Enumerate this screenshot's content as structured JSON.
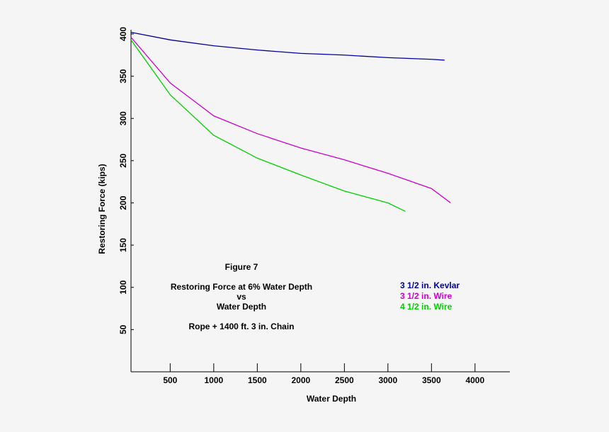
{
  "chart_data": {
    "type": "line",
    "x_label": "Water Depth",
    "y_label": "Restoring Force (kips)",
    "annotations": [
      "Figure  7",
      "Restoring Force at 6% Water Depth",
      "vs",
      "Water Depth",
      "Rope + 1400 ft.  3 in. Chain"
    ],
    "xlim": [
      50,
      4400
    ],
    "xticks": [
      500,
      1000,
      1500,
      2000,
      2500,
      3000,
      3500,
      4000
    ],
    "ylim": [
      0,
      405
    ],
    "yticks": [
      50,
      100,
      150,
      200,
      250,
      300,
      350,
      400
    ],
    "x": [
      50,
      500,
      1000,
      1500,
      2000,
      2500,
      3000,
      3200,
      3500,
      3650,
      3720
    ],
    "series": [
      {
        "name": "3 1/2 in. Kevlar",
        "color": "#0000a0",
        "values": [
          402,
          393,
          386,
          381,
          377,
          375,
          372,
          null,
          370,
          369,
          null
        ]
      },
      {
        "name": "3 1/2 in. Wire",
        "color": "#d000d0",
        "values": [
          396,
          342,
          303,
          282,
          265,
          251,
          235,
          null,
          217,
          null,
          200
        ]
      },
      {
        "name": "4 1/2 in. Wire",
        "color": "#00d000",
        "values": [
          393,
          328,
          280,
          253,
          233,
          214,
          200,
          190,
          null,
          null,
          null
        ]
      }
    ]
  }
}
